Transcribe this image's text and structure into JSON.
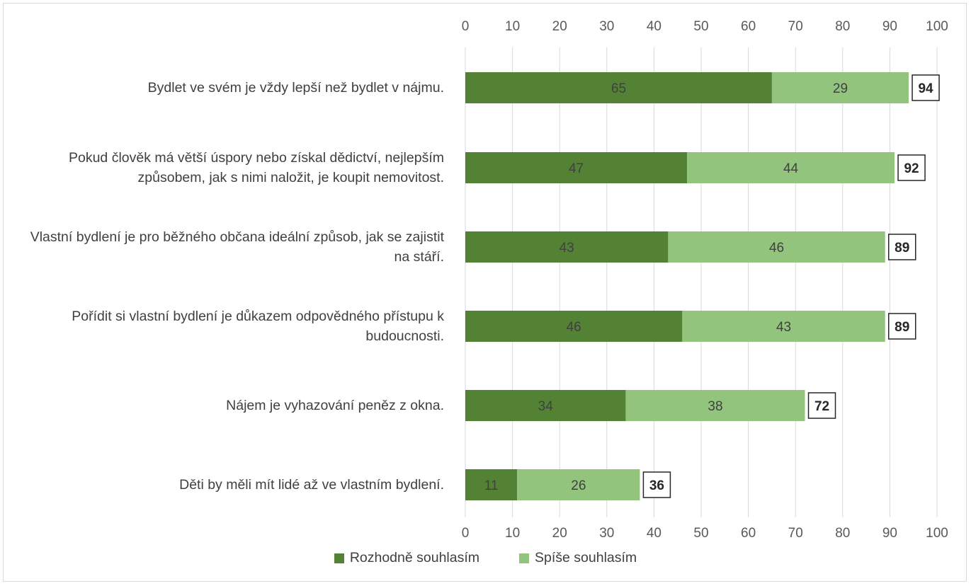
{
  "chart_data": {
    "type": "bar",
    "orientation": "horizontal",
    "stacked": true,
    "categories": [
      "Bydlet ve svém je vždy lepší než bydlet v nájmu.",
      "Pokud člověk má větší úspory nebo získal dědictví, nejlepším způsobem, jak s nimi naložit, je koupit nemovitost.",
      "Vlastní bydlení je pro běžného občana ideální způsob, jak se zajistit na stáří.",
      "Pořídit si vlastní bydlení je důkazem odpovědného přístupu k budoucnosti.",
      "Nájem je vyhazování peněz z okna.",
      "Děti by měli mít lidé až ve vlastním bydlení."
    ],
    "series": [
      {
        "name": "Rozhodně souhlasím",
        "color": "#548235",
        "values": [
          65,
          47,
          43,
          46,
          34,
          11
        ]
      },
      {
        "name": "Spíše souhlasím",
        "color": "#93c47d",
        "values": [
          29,
          44,
          46,
          43,
          38,
          26
        ]
      }
    ],
    "totals": [
      94,
      92,
      89,
      89,
      72,
      36
    ],
    "xlim": [
      0,
      100
    ],
    "xticks": [
      "0",
      "10",
      "20",
      "30",
      "40",
      "50",
      "60",
      "70",
      "80",
      "90",
      "100"
    ],
    "axis_position": "top and bottom",
    "grid": true,
    "legend_position": "bottom"
  }
}
